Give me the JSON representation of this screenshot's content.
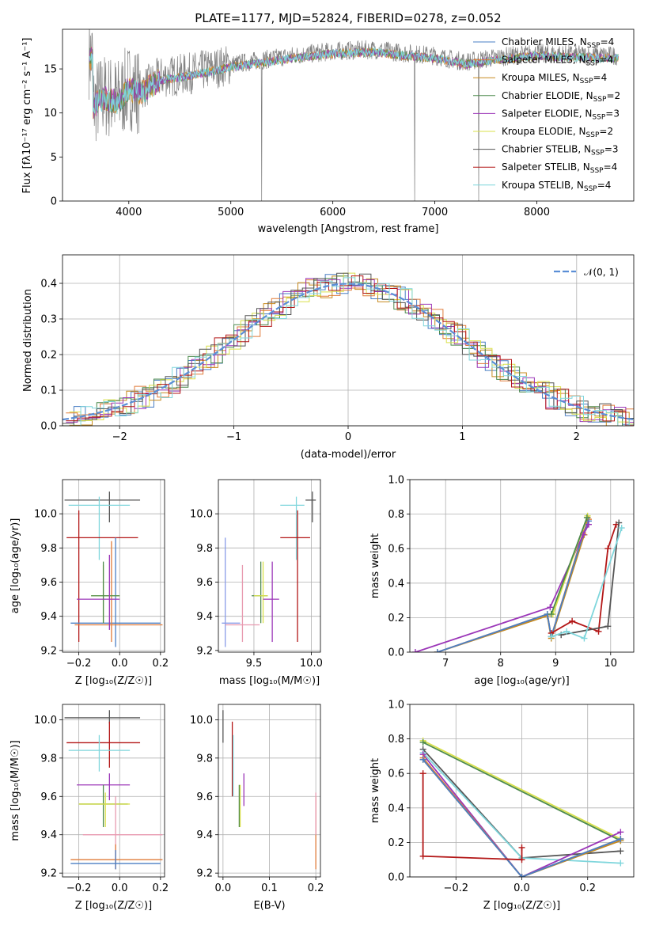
{
  "colors": {
    "chabrier_miles": "#4a7fc4",
    "salpeter_miles": "#e07b39",
    "kroupa_miles": "#c78a1e",
    "chabrier_elodie": "#4d8a4d",
    "salpeter_elodie": "#9b36b8",
    "kroupa_elodie": "#d9e04a",
    "chabrier_stelib": "#555555",
    "salpeter_stelib": "#b31717",
    "kroupa_stelib": "#7fd6dc",
    "gaussian": "#5b8ed6",
    "pdf_spectrum": "#808080",
    "miles_mass": "#8a9de8",
    "salpeter_miles_mass": "#e89ab0"
  },
  "chart_data": [
    {
      "id": "spectrum",
      "type": "line",
      "title": "PLATE=1177, MJD=52824, FIBERID=0278, z=0.052",
      "xlabel": "wavelength [Angstrom, rest frame]",
      "ylabel": "Flux [fλ10⁻¹⁷ erg cm⁻² s⁻¹ A⁻¹]",
      "xlim": [
        3350,
        8950
      ],
      "ylim": [
        0,
        19.5
      ],
      "xticks": [
        "4000",
        "5000",
        "6000",
        "7000",
        "8000"
      ],
      "yticks": [
        "0",
        "5",
        "10",
        "15"
      ],
      "legend": [
        {
          "sub": "Chabrier MILES, N",
          "suffix": "SSP",
          "tail": "=4",
          "color_key": "chabrier_miles"
        },
        {
          "sub": "Salpeter MILES, N",
          "suffix": "SSP",
          "tail": "=4",
          "color_key": "salpeter_miles"
        },
        {
          "sub": "Kroupa MILES, N",
          "suffix": "SSP",
          "tail": "=4",
          "color_key": "kroupa_miles"
        },
        {
          "sub": "Chabrier ELODIE, N",
          "suffix": "SSP",
          "tail": "=2",
          "color_key": "chabrier_elodie"
        },
        {
          "sub": "Salpeter ELODIE, N",
          "suffix": "SSP",
          "tail": "=3",
          "color_key": "salpeter_elodie"
        },
        {
          "sub": "Kroupa ELODIE, N",
          "suffix": "SSP",
          "tail": "=2",
          "color_key": "kroupa_elodie"
        },
        {
          "sub": "Chabrier STELIB, N",
          "suffix": "SSP",
          "tail": "=3",
          "color_key": "chabrier_stelib"
        },
        {
          "sub": "Salpeter STELIB, N",
          "suffix": "SSP",
          "tail": "=4",
          "color_key": "salpeter_stelib"
        },
        {
          "sub": "Kroupa STELIB, N",
          "suffix": "SSP",
          "tail": "=4",
          "color_key": "kroupa_stelib"
        }
      ],
      "legend_position": "right",
      "anchors": [
        [
          3650,
          11
        ],
        [
          3750,
          12
        ],
        [
          3900,
          11.5
        ],
        [
          4000,
          13
        ],
        [
          4100,
          12.5
        ],
        [
          4300,
          14
        ],
        [
          4600,
          14.5
        ],
        [
          5000,
          15.5
        ],
        [
          5300,
          16
        ],
        [
          5600,
          16.5
        ],
        [
          6000,
          17
        ],
        [
          6400,
          17.2
        ],
        [
          6700,
          16.8
        ],
        [
          7000,
          16.5
        ],
        [
          7300,
          15.8
        ],
        [
          7600,
          16.3
        ],
        [
          8000,
          16.8
        ],
        [
          8400,
          16.6
        ],
        [
          8800,
          16.5
        ]
      ],
      "grid": false
    },
    {
      "id": "residuals",
      "type": "line",
      "xlabel": "(data-model)/error",
      "ylabel": "Normed distribution",
      "xlim": [
        -2.5,
        2.5
      ],
      "ylim": [
        0,
        0.48
      ],
      "xticks": [
        "−2",
        "−1",
        "0",
        "1",
        "2"
      ],
      "yticks": [
        "0.0",
        "0.1",
        "0.2",
        "0.3",
        "0.4"
      ],
      "legend": [
        {
          "label": "𝒩(0, 1)",
          "color_key": "gaussian"
        }
      ],
      "legend_position": "top-right",
      "grid": true
    },
    {
      "id": "age_vs_Z",
      "type": "scatter",
      "xlabel": "Z [log₁₀(Z/Z☉)]",
      "ylabel": "age [log₁₀(age/yr)]",
      "xlim": [
        -0.28,
        0.22
      ],
      "ylim": [
        9.19,
        10.2
      ],
      "xticks": [
        "−0.2",
        "0.0",
        "0.2"
      ],
      "yticks": [
        "9.2",
        "9.4",
        "9.6",
        "9.8",
        "10.0"
      ],
      "points": [
        {
          "k": "chabrier_stelib",
          "x": -0.05,
          "y": 10.08,
          "x_lo": -0.27,
          "x_hi": 0.1,
          "y_lo": 9.95,
          "y_hi": 10.13
        },
        {
          "k": "kroupa_stelib",
          "x": -0.1,
          "y": 10.05,
          "x_lo": -0.25,
          "x_hi": 0.05,
          "y_lo": 9.73,
          "y_hi": 10.1
        },
        {
          "k": "salpeter_stelib",
          "x": -0.2,
          "y": 9.86,
          "x_lo": -0.26,
          "x_hi": 0.09,
          "y_lo": 9.25,
          "y_hi": 10.02
        },
        {
          "k": "chabrier_miles",
          "x": -0.02,
          "y": 9.36,
          "x_lo": -0.24,
          "x_hi": 0.2,
          "y_lo": 9.22,
          "y_hi": 9.86
        },
        {
          "k": "salpeter_miles",
          "x": -0.04,
          "y": 9.35,
          "x_lo": -0.22,
          "x_hi": 0.21,
          "y_lo": 9.25,
          "y_hi": 9.84
        },
        {
          "k": "kroupa_elodie",
          "x": -0.08,
          "y": 9.52,
          "x_lo": -0.14,
          "x_hi": 0.0,
          "y_lo": 9.36,
          "y_hi": 9.7
        },
        {
          "k": "chabrier_elodie",
          "x": -0.08,
          "y": 9.52,
          "x_lo": -0.14,
          "x_hi": 0.0,
          "y_lo": 9.36,
          "y_hi": 9.72
        },
        {
          "k": "salpeter_elodie",
          "x": -0.05,
          "y": 9.5,
          "x_lo": -0.21,
          "x_hi": 0.0,
          "y_lo": 9.32,
          "y_hi": 9.76
        }
      ],
      "grid": true
    },
    {
      "id": "age_vs_mass",
      "type": "scatter",
      "xlabel": "mass [log₁₀(M/M☉)]",
      "ylabel": "",
      "xlim": [
        9.19,
        10.08
      ],
      "ylim": [
        9.19,
        10.2
      ],
      "xticks": [
        "9.5",
        "10.0"
      ],
      "yticks": [
        "9.2",
        "9.4",
        "9.6",
        "9.8",
        "10.0"
      ],
      "points": [
        {
          "k": "chabrier_stelib",
          "x": 10.01,
          "y": 10.08,
          "x_lo": 9.95,
          "x_hi": 10.04,
          "y_lo": 9.95,
          "y_hi": 10.13
        },
        {
          "k": "kroupa_stelib",
          "x": 9.87,
          "y": 10.05,
          "x_lo": 9.73,
          "x_hi": 9.94,
          "y_lo": 9.73,
          "y_hi": 10.1
        },
        {
          "k": "salpeter_stelib",
          "x": 9.88,
          "y": 9.86,
          "x_lo": 9.73,
          "x_hi": 9.99,
          "y_lo": 9.25,
          "y_hi": 10.02
        },
        {
          "k": "miles_mass",
          "x": 9.25,
          "y": 9.36,
          "x_lo": 9.22,
          "x_hi": 9.38,
          "y_lo": 9.22,
          "y_hi": 9.86
        },
        {
          "k": "salpeter_miles_mass",
          "x": 9.4,
          "y": 9.35,
          "x_lo": 9.25,
          "x_hi": 9.55,
          "y_lo": 9.25,
          "y_hi": 9.7
        },
        {
          "k": "chabrier_elodie",
          "x": 9.56,
          "y": 9.52,
          "x_lo": 9.48,
          "x_hi": 9.62,
          "y_lo": 9.36,
          "y_hi": 9.72
        },
        {
          "k": "kroupa_elodie",
          "x": 9.58,
          "y": 9.52,
          "x_lo": 9.5,
          "x_hi": 9.62,
          "y_lo": 9.36,
          "y_hi": 9.72
        },
        {
          "k": "salpeter_elodie",
          "x": 9.66,
          "y": 9.5,
          "x_lo": 9.58,
          "x_hi": 9.72,
          "y_lo": 9.25,
          "y_hi": 9.72
        }
      ],
      "grid": true
    },
    {
      "id": "weight_vs_age",
      "type": "line",
      "xlabel": "age [log₁₀(age/yr)]",
      "ylabel": "mass weight",
      "xlim": [
        6.35,
        10.42
      ],
      "ylim": [
        0,
        1.0
      ],
      "xticks": [
        "7",
        "8",
        "9",
        "10"
      ],
      "yticks": [
        "0.0",
        "0.2",
        "0.4",
        "0.6",
        "0.8",
        "1.0"
      ],
      "series": [
        {
          "k": "kroupa_miles",
          "x": [
            6.85,
            8.85,
            8.92,
            9.52,
            9.58
          ],
          "y": [
            0.0,
            0.21,
            0.08,
            0.68,
            0.78
          ]
        },
        {
          "k": "salpeter_miles",
          "x": [
            6.85,
            8.85,
            8.92,
            9.5,
            9.6
          ],
          "y": [
            0.0,
            0.22,
            0.09,
            0.69,
            0.77
          ]
        },
        {
          "k": "chabrier_miles",
          "x": [
            6.85,
            8.85,
            8.92,
            9.5,
            9.6
          ],
          "y": [
            0.0,
            0.22,
            0.09,
            0.68,
            0.76
          ]
        },
        {
          "k": "salpeter_elodie",
          "x": [
            6.45,
            8.9,
            9.5,
            9.6
          ],
          "y": [
            0.0,
            0.26,
            0.68,
            0.74
          ]
        },
        {
          "k": "kroupa_elodie",
          "x": [
            8.95,
            9.58
          ],
          "y": [
            0.22,
            0.79
          ]
        },
        {
          "k": "chabrier_elodie",
          "x": [
            8.92,
            9.57
          ],
          "y": [
            0.22,
            0.78
          ]
        },
        {
          "k": "salpeter_stelib",
          "x": [
            8.92,
            9.3,
            9.78,
            9.95,
            10.1
          ],
          "y": [
            0.11,
            0.18,
            0.12,
            0.6,
            0.74
          ]
        },
        {
          "k": "chabrier_stelib",
          "x": [
            9.1,
            9.95,
            10.15
          ],
          "y": [
            0.1,
            0.15,
            0.75
          ]
        },
        {
          "k": "kroupa_stelib",
          "x": [
            8.92,
            9.2,
            9.52,
            10.2
          ],
          "y": [
            0.09,
            0.12,
            0.08,
            0.72
          ]
        }
      ],
      "grid": true
    },
    {
      "id": "mass_vs_Z",
      "type": "scatter",
      "xlabel": "Z [log₁₀(Z/Z☉)]",
      "ylabel": "mass [log₁₀(M/M☉)]",
      "xlim": [
        -0.28,
        0.22
      ],
      "ylim": [
        9.18,
        10.08
      ],
      "xticks": [
        "−0.2",
        "0.0",
        "0.2"
      ],
      "yticks": [
        "9.2",
        "9.4",
        "9.6",
        "9.8",
        "10.0"
      ],
      "points": [
        {
          "k": "chabrier_stelib",
          "x": -0.05,
          "y": 10.01,
          "x_lo": -0.27,
          "x_hi": 0.1,
          "y_lo": 9.98,
          "y_hi": 10.05
        },
        {
          "k": "salpeter_stelib",
          "x": -0.05,
          "y": 9.88,
          "x_lo": -0.26,
          "x_hi": 0.1,
          "y_lo": 9.75,
          "y_hi": 9.99
        },
        {
          "k": "kroupa_stelib",
          "x": -0.1,
          "y": 9.84,
          "x_lo": -0.25,
          "x_hi": 0.05,
          "y_lo": 9.73,
          "y_hi": 9.92
        },
        {
          "k": "salpeter_elodie",
          "x": -0.05,
          "y": 9.66,
          "x_lo": -0.21,
          "x_hi": 0.05,
          "y_lo": 9.58,
          "y_hi": 9.72
        },
        {
          "k": "chabrier_elodie",
          "x": -0.08,
          "y": 9.56,
          "x_lo": -0.2,
          "x_hi": 0.04,
          "y_lo": 9.44,
          "y_hi": 9.66
        },
        {
          "k": "kroupa_elodie",
          "x": -0.07,
          "y": 9.56,
          "x_lo": -0.2,
          "x_hi": 0.05,
          "y_lo": 9.44,
          "y_hi": 9.62
        },
        {
          "k": "salpeter_miles_mass",
          "x": -0.02,
          "y": 9.4,
          "x_lo": -0.18,
          "x_hi": 0.21,
          "y_lo": 9.22,
          "y_hi": 9.6
        },
        {
          "k": "salpeter_miles",
          "x": -0.02,
          "y": 9.27,
          "x_lo": -0.24,
          "x_hi": 0.21,
          "y_lo": 9.22,
          "y_hi": 9.35
        },
        {
          "k": "chabrier_miles",
          "x": -0.02,
          "y": 9.25,
          "x_lo": -0.24,
          "x_hi": 0.2,
          "y_lo": 9.22,
          "y_hi": 9.32
        }
      ],
      "grid": true
    },
    {
      "id": "mass_vs_ebv",
      "type": "scatter",
      "xlabel": "E(B-V)",
      "ylabel": "",
      "xlim": [
        -0.01,
        0.21
      ],
      "ylim": [
        9.18,
        10.08
      ],
      "xticks": [
        "0.0",
        "0.1",
        "0.2"
      ],
      "yticks": [
        "9.2",
        "9.4",
        "9.6",
        "9.8",
        "10.0"
      ],
      "points": [
        {
          "k": "chabrier_stelib",
          "x": 0.0,
          "y": 10.01,
          "x_lo": 0.0,
          "x_hi": 0.0,
          "y_lo": 9.88,
          "y_hi": 10.05
        },
        {
          "k": "salpeter_stelib",
          "x": 0.02,
          "y": 9.88,
          "x_lo": 0.02,
          "x_hi": 0.02,
          "y_lo": 9.6,
          "y_hi": 9.99
        },
        {
          "k": "kroupa_stelib",
          "x": 0.022,
          "y": 9.84,
          "x_lo": 0.022,
          "x_hi": 0.022,
          "y_lo": 9.6,
          "y_hi": 9.92
        },
        {
          "k": "salpeter_elodie",
          "x": 0.045,
          "y": 9.66,
          "x_lo": 0.045,
          "x_hi": 0.045,
          "y_lo": 9.55,
          "y_hi": 9.72
        },
        {
          "k": "chabrier_elodie",
          "x": 0.035,
          "y": 9.56,
          "x_lo": 0.035,
          "x_hi": 0.035,
          "y_lo": 9.44,
          "y_hi": 9.66
        },
        {
          "k": "kroupa_elodie",
          "x": 0.037,
          "y": 9.56,
          "x_lo": 0.037,
          "x_hi": 0.037,
          "y_lo": 9.44,
          "y_hi": 9.66
        },
        {
          "k": "salpeter_miles",
          "x": 0.2,
          "y": 9.4,
          "x_lo": 0.2,
          "x_hi": 0.2,
          "y_lo": 9.22,
          "y_hi": 9.6
        },
        {
          "k": "salpeter_miles_mass",
          "x": 0.2,
          "y": 9.6,
          "x_lo": 0.2,
          "x_hi": 0.2,
          "y_lo": 9.4,
          "y_hi": 9.62
        }
      ],
      "grid": true
    },
    {
      "id": "weight_vs_Z",
      "type": "line",
      "xlabel": "Z [log₁₀(Z/Z☉)]",
      "ylabel": "mass weight",
      "xlim": [
        -0.34,
        0.34
      ],
      "ylim": [
        0,
        1.0
      ],
      "xticks": [
        "−0.2",
        "0.0",
        "0.2"
      ],
      "yticks": [
        "0.0",
        "0.2",
        "0.4",
        "0.6",
        "0.8",
        "1.0"
      ],
      "series": [
        {
          "k": "kroupa_elodie",
          "x": [
            -0.3,
            0.3
          ],
          "y": [
            0.79,
            0.22
          ]
        },
        {
          "k": "chabrier_elodie",
          "x": [
            -0.3,
            0.3
          ],
          "y": [
            0.78,
            0.21
          ]
        },
        {
          "k": "chabrier_stelib",
          "x": [
            -0.3,
            0.0,
            0.3
          ],
          "y": [
            0.74,
            0.11,
            0.15
          ]
        },
        {
          "k": "kroupa_stelib",
          "x": [
            -0.3,
            0.0,
            0.3
          ],
          "y": [
            0.72,
            0.11,
            0.08
          ]
        },
        {
          "k": "salpeter_elodie",
          "x": [
            -0.3,
            0.0,
            0.3
          ],
          "y": [
            0.71,
            0.0,
            0.26
          ]
        },
        {
          "k": "salpeter_miles",
          "x": [
            -0.3,
            0.0,
            0.3
          ],
          "y": [
            0.69,
            0.0,
            0.22
          ]
        },
        {
          "k": "kroupa_miles",
          "x": [
            -0.3,
            0.0,
            0.3
          ],
          "y": [
            0.68,
            0.0,
            0.21
          ]
        },
        {
          "k": "chabrier_miles",
          "x": [
            -0.3,
            0.0,
            0.3
          ],
          "y": [
            0.68,
            0.0,
            0.22
          ]
        },
        {
          "k": "salpeter_stelib",
          "x": [
            -0.3,
            -0.3,
            0.0,
            0.0
          ],
          "y": [
            0.6,
            0.12,
            0.1,
            0.17
          ]
        }
      ],
      "grid": true
    }
  ]
}
